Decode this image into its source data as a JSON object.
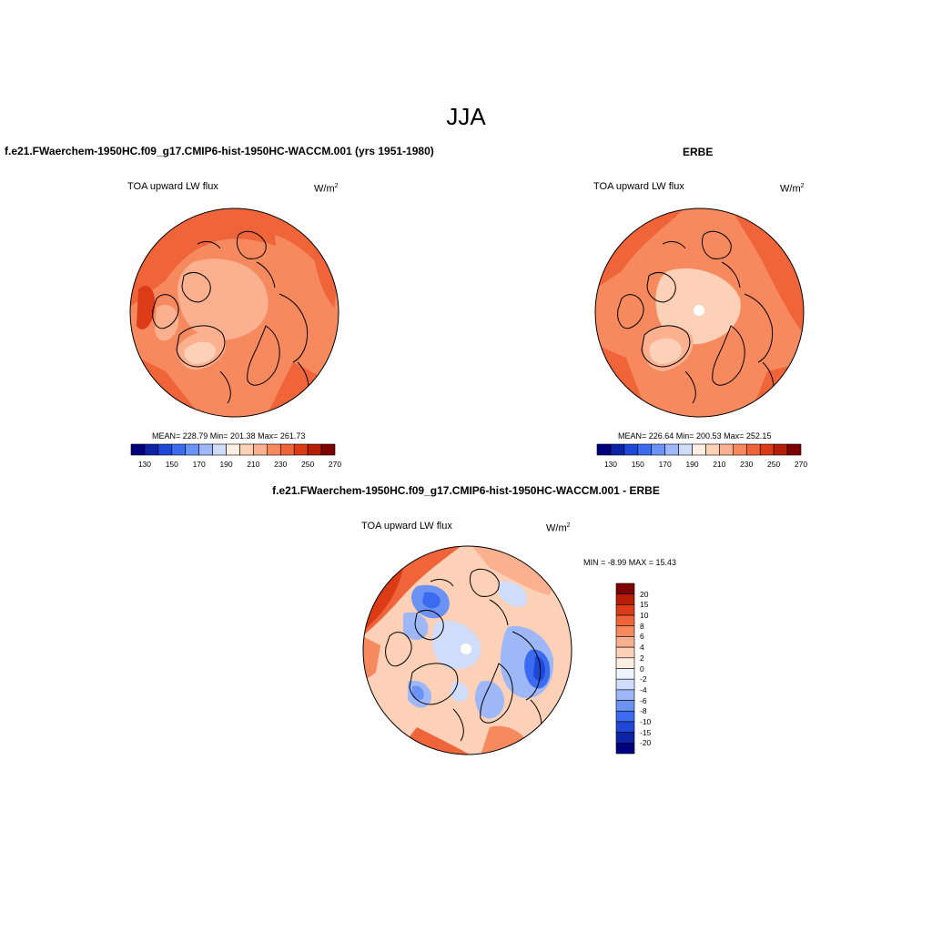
{
  "figure": {
    "title": "JJA"
  },
  "panels": [
    {
      "title": "f.e21.FWaerchem-1950HC.f09_g17.CMIP6-hist-1950HC-WACCM.001 (yrs 1951-1980)",
      "variable": "TOA upward LW flux",
      "units": "W/m",
      "units_exp": "2",
      "stats": "MEAN= 228.79  Min= 201.38  Max= 261.73",
      "colorbar_ticks": [
        "130",
        "150",
        "170",
        "190",
        "210",
        "230",
        "250",
        "270"
      ]
    },
    {
      "title": "ERBE",
      "variable": "TOA upward LW flux",
      "units": "W/m",
      "units_exp": "2",
      "stats": "MEAN= 226.64  Min= 200.53  Max= 252.15",
      "colorbar_ticks": [
        "130",
        "150",
        "170",
        "190",
        "210",
        "230",
        "250",
        "270"
      ]
    },
    {
      "title": "f.e21.FWaerchem-1950HC.f09_g17.CMIP6-hist-1950HC-WACCM.001 - ERBE",
      "variable": "TOA upward LW flux",
      "units": "W/m",
      "units_exp": "2",
      "stats": "MIN =  -8.99 MAX =  15.43",
      "colorbar_ticks": [
        "20",
        "15",
        "10",
        "8",
        "6",
        "4",
        "2",
        "0",
        "-2",
        "-4",
        "-6",
        "-8",
        "-10",
        "-15",
        "-20"
      ]
    }
  ],
  "colors": {
    "abs_scale": [
      "#00007f",
      "#0c23a8",
      "#1f47d6",
      "#3b6bf0",
      "#6b93f5",
      "#9db7f7",
      "#d0ddfa",
      "#fdeee3",
      "#fdd0b8",
      "#fbb08f",
      "#f7895f",
      "#f0643a",
      "#dc3b17",
      "#b51d07",
      "#7f0000"
    ],
    "diff_scale": [
      "#00007f",
      "#0c23a8",
      "#1f47d6",
      "#3b6bf0",
      "#6b93f5",
      "#9db7f7",
      "#d0ddfa",
      "#eef3fd",
      "#fdeee3",
      "#fdd0b8",
      "#fbb08f",
      "#f7895f",
      "#f0643a",
      "#dc3b17",
      "#b51d07",
      "#7f0000"
    ]
  }
}
